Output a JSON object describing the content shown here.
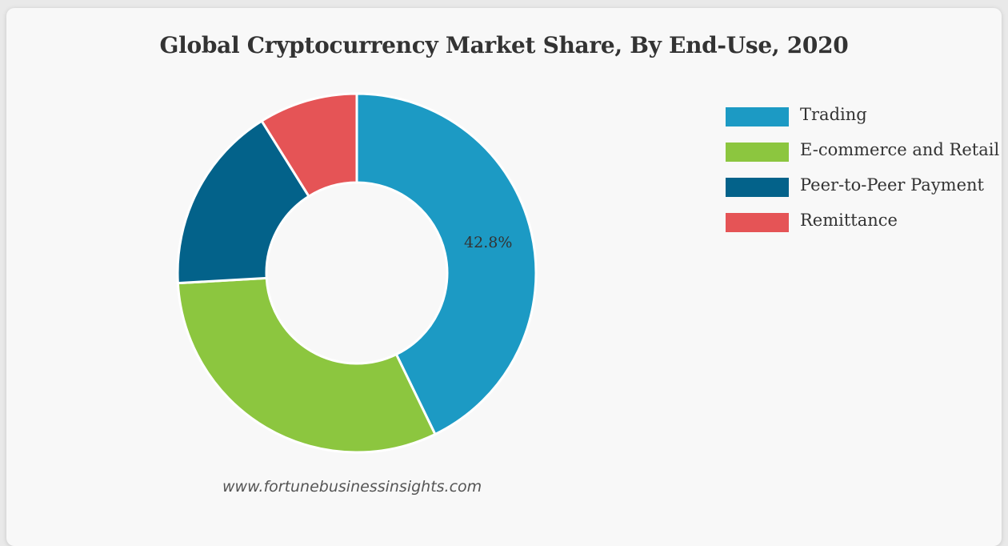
{
  "chart_data": {
    "type": "pie",
    "title": "Global Cryptocurrency Market Share, By End-Use, 2020",
    "categories": [
      "Trading",
      "E-commerce and Retail",
      "Peer-to-Peer Payment",
      "Remittance"
    ],
    "values": [
      42.8,
      31.3,
      17.0,
      8.9
    ],
    "unit": "%",
    "colors": [
      "#1c9ac4",
      "#8cc63f",
      "#03628a",
      "#e55456"
    ],
    "data_labels": [
      "42.8%",
      null,
      null,
      null
    ],
    "legend_position": "right",
    "donut": true,
    "source": "www.fortunebusinessinsights.com"
  }
}
